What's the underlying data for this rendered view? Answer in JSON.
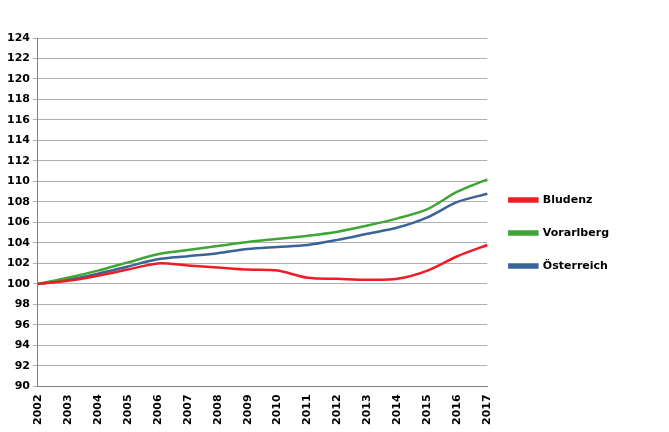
{
  "chart_data": {
    "type": "line",
    "categories": [
      "2002",
      "2003",
      "2004",
      "2005",
      "2006",
      "2007",
      "2008",
      "2009",
      "2010",
      "2011",
      "2012",
      "2013",
      "2014",
      "2015",
      "2016",
      "2017"
    ],
    "series": [
      {
        "name": "Bludenz",
        "color": "#ee1c25",
        "values": [
          100,
          100.3,
          100.8,
          101.4,
          102.0,
          101.8,
          101.6,
          101.4,
          101.3,
          100.6,
          100.5,
          100.4,
          100.5,
          101.3,
          102.7,
          103.8
        ]
      },
      {
        "name": "Vorarlberg",
        "color": "#3fa535",
        "values": [
          100,
          100.6,
          101.3,
          102.1,
          102.9,
          103.3,
          103.7,
          104.1,
          104.4,
          104.7,
          105.1,
          105.7,
          106.4,
          107.3,
          109.0,
          110.2
        ]
      },
      {
        "name": "Österreich",
        "color": "#3b6496",
        "values": [
          100,
          100.4,
          101.0,
          101.7,
          102.4,
          102.7,
          103.0,
          103.4,
          103.6,
          103.8,
          104.3,
          104.9,
          105.5,
          106.5,
          108.0,
          108.8
        ]
      }
    ],
    "ylim": [
      90,
      124
    ],
    "yticks": [
      90,
      92,
      94,
      96,
      98,
      100,
      102,
      104,
      106,
      108,
      110,
      112,
      114,
      116,
      118,
      120,
      122,
      124
    ],
    "grid": true,
    "legend": "right"
  }
}
